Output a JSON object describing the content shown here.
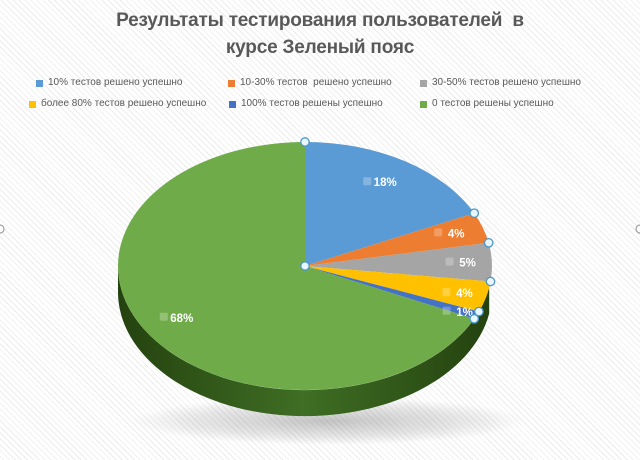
{
  "title": {
    "line1": "Результаты тестирования пользователей  в",
    "line2": "курсе Зеленый пояс"
  },
  "legend": {
    "items": [
      {
        "label": "10% тестов решено успешно",
        "color": "#5B9BD5"
      },
      {
        "label": "10-30% тестов  решено успешно",
        "color": "#ED7D31"
      },
      {
        "label": "30-50% тестов решено успешно",
        "color": "#A5A5A5"
      },
      {
        "label": "более 80% тестов решено успешно",
        "color": "#FFC000"
      },
      {
        "label": "100% тестов решены успешно",
        "color": "#4472C4"
      },
      {
        "label": "0 тестов решены успешно",
        "color": "#6FAC49"
      }
    ]
  },
  "chart_data": {
    "type": "pie",
    "style": "3d-pie",
    "title": "Результаты тестирования пользователей в курсе Зеленый пояс",
    "legend_position": "top",
    "direction": "clockwise",
    "start_angle_deg": 0,
    "categories": [
      "10% тестов решено успешно",
      "10-30% тестов  решено успешно",
      "30-50% тестов решено успешно",
      "более 80% тестов решено успешно",
      "100% тестов решены успешно",
      "0 тестов решены успешно"
    ],
    "values": [
      18,
      4,
      5,
      4,
      1,
      68
    ],
    "data_labels": [
      "18%",
      "4%",
      "5%",
      "4%",
      "1%",
      "68%"
    ],
    "colors": [
      "#5B9BD5",
      "#ED7D31",
      "#A5A5A5",
      "#FFC000",
      "#4472C4",
      "#6FAC49"
    ]
  },
  "colors": {
    "background": "#FFFFFF",
    "stripe": "#ECECEC",
    "title_text": "#595959",
    "legend_text": "#595959",
    "data_label_text": "#FFFFFF",
    "rim_dark": "#24420F",
    "rim_mid": "#3F6E24",
    "handle_fill": "#EAF6FD",
    "handle_stroke": "#4C96C8",
    "frame_handle_fill": "#FFFFFF",
    "frame_handle_stroke": "#A0A0A0"
  }
}
